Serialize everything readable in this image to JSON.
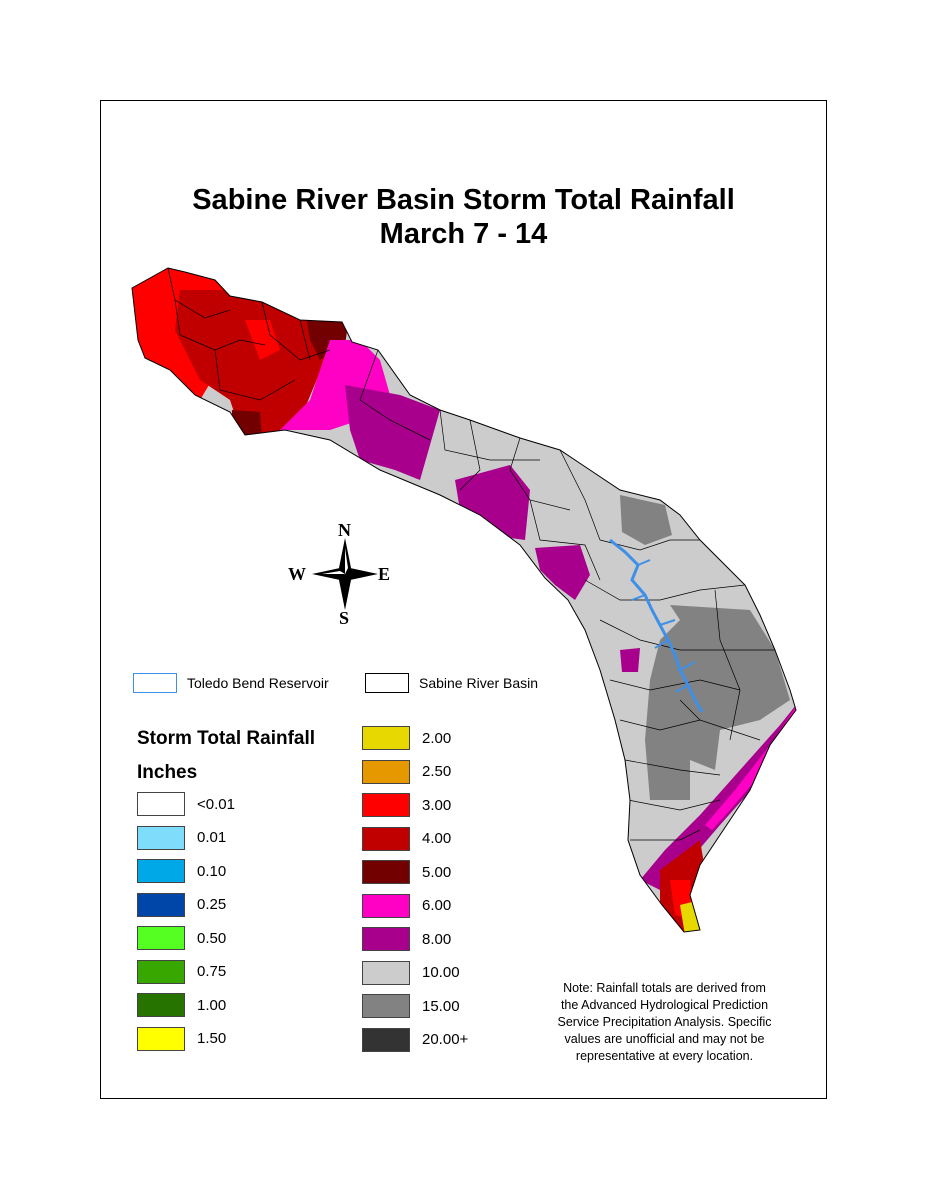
{
  "title": {
    "line1": "Sabine River Basin Storm Total Rainfall",
    "line2": "March 7 - 14"
  },
  "compass": {
    "n": "N",
    "s": "S",
    "e": "E",
    "w": "W"
  },
  "layers": {
    "reservoir": {
      "label": "Toledo Bend Reservoir",
      "color": "#3d8fe8"
    },
    "basin": {
      "label": "Sabine River Basin",
      "color": "#000000"
    }
  },
  "legend": {
    "title": "Storm Total Rainfall",
    "units": "Inches",
    "left": [
      {
        "label": "<0.01",
        "color": "#ffffff"
      },
      {
        "label": "0.01",
        "color": "#7fdcfb"
      },
      {
        "label": "0.10",
        "color": "#00a8e8"
      },
      {
        "label": "0.25",
        "color": "#0046a8"
      },
      {
        "label": "0.50",
        "color": "#55ff22"
      },
      {
        "label": "0.75",
        "color": "#38a800"
      },
      {
        "label": "1.00",
        "color": "#267300"
      },
      {
        "label": "1.50",
        "color": "#ffff00"
      }
    ],
    "right": [
      {
        "label": "2.00",
        "color": "#e6d800"
      },
      {
        "label": "2.50",
        "color": "#e69800"
      },
      {
        "label": "3.00",
        "color": "#ff0000"
      },
      {
        "label": "4.00",
        "color": "#c00000"
      },
      {
        "label": "5.00",
        "color": "#730000"
      },
      {
        "label": "6.00",
        "color": "#ff00c5"
      },
      {
        "label": "8.00",
        "color": "#a8008c"
      },
      {
        "label": "10.00",
        "color": "#cccccc"
      },
      {
        "label": "15.00",
        "color": "#828282"
      },
      {
        "label": "20.00+",
        "color": "#333333"
      }
    ]
  },
  "note": {
    "line1": "Note: Rainfall totals are derived from",
    "line2": "the Advanced Hydrological Prediction",
    "line3": "Service Precipitation Analysis. Specific",
    "line4": "values are unofficial and may not be",
    "line5": "representative at every location."
  }
}
